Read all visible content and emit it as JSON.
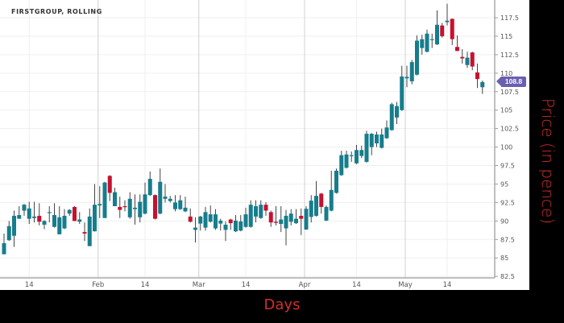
{
  "chart_data": {
    "type": "candlestick",
    "title": "FIRSTGROUP, ROLLING",
    "xlabel": "Days",
    "ylabel": "Price (in pence)",
    "ylim": [
      82.3,
      119.9
    ],
    "yticks": [
      82.5,
      85,
      87.5,
      90,
      92.5,
      95,
      97.5,
      100,
      102.5,
      105,
      107.5,
      110,
      112.5,
      115,
      117.5
    ],
    "xticks": [
      {
        "label": "14",
        "date": "Jan 14",
        "major": false
      },
      {
        "label": "Feb",
        "date": "Feb 1",
        "major": true
      },
      {
        "label": "14",
        "date": "Feb 14",
        "major": false
      },
      {
        "label": "Mar",
        "date": "Mar 1",
        "major": true
      },
      {
        "label": "14",
        "date": "Mar 14",
        "major": false
      },
      {
        "label": "Apr",
        "date": "Apr 1",
        "major": true
      },
      {
        "label": "14",
        "date": "Apr 15",
        "major": false
      },
      {
        "label": "May",
        "date": "May 1",
        "major": true
      },
      {
        "label": "14",
        "date": "May 14",
        "major": false
      }
    ],
    "grid": true,
    "last_price": "108.8",
    "colors": {
      "up": "#167d8c",
      "down": "#c8102e",
      "wick": "#444444",
      "badge": "#6a5fb0",
      "axis_title": "#d32f2f"
    },
    "columns": [
      "date",
      "open",
      "high",
      "low",
      "close"
    ],
    "candles": [
      [
        "Jan 7",
        85.5,
        88.3,
        85.5,
        87.0
      ],
      [
        "Jan 8",
        87.4,
        90.0,
        87.3,
        89.3
      ],
      [
        "Jan 9",
        88.0,
        91.4,
        86.5,
        90.7
      ],
      [
        "Jan 10",
        90.3,
        92.0,
        90.3,
        90.8
      ],
      [
        "Jan 11",
        91.4,
        92.3,
        90.7,
        92.2
      ],
      [
        "Jan 14",
        90.3,
        92.6,
        89.6,
        91.7
      ],
      [
        "Jan 15",
        90.4,
        92.6,
        89.8,
        90.6
      ],
      [
        "Jan 16",
        90.7,
        92.4,
        89.4,
        89.9
      ],
      [
        "Jan 17",
        89.5,
        90.1,
        88.9,
        90.0
      ],
      [
        "Jan 18",
        91.1,
        92.0,
        89.8,
        91.2
      ],
      [
        "Jan 21",
        89.2,
        92.4,
        89.1,
        90.8
      ],
      [
        "Jan 22",
        88.2,
        92.0,
        88.2,
        90.5
      ],
      [
        "Jan 23",
        89.0,
        91.6,
        88.9,
        90.7
      ],
      [
        "Jan 24",
        91.0,
        91.6,
        90.7,
        91.5
      ],
      [
        "Jan 25",
        91.9,
        92.0,
        90.0,
        90.0
      ],
      [
        "Jan 28",
        89.9,
        91.2,
        89.6,
        90.2
      ],
      [
        "Jan 29",
        88.5,
        89.8,
        87.3,
        88.3
      ],
      [
        "Jan 30",
        86.6,
        91.7,
        86.6,
        90.6
      ],
      [
        "Jan 31",
        88.6,
        95.0,
        88.6,
        92.2
      ],
      [
        "Feb 1",
        92.1,
        94.7,
        90.4,
        92.3
      ],
      [
        "Feb 4",
        90.4,
        95.3,
        90.4,
        95.2
      ],
      [
        "Feb 5",
        96.1,
        96.2,
        92.7,
        93.8
      ],
      [
        "Feb 6",
        92.0,
        94.5,
        92.0,
        93.9
      ],
      [
        "Feb 7",
        91.9,
        93.3,
        90.4,
        91.5
      ],
      [
        "Feb 8",
        92.0,
        92.8,
        91.3,
        91.9
      ],
      [
        "Feb 11",
        90.5,
        93.9,
        90.3,
        93.0
      ],
      [
        "Feb 12",
        91.6,
        93.6,
        89.5,
        91.8
      ],
      [
        "Feb 13",
        90.5,
        93.6,
        89.8,
        92.6
      ],
      [
        "Feb 14",
        91.0,
        95.2,
        90.9,
        93.6
      ],
      [
        "Feb 15",
        93.5,
        96.7,
        93.4,
        95.7
      ],
      [
        "Feb 18",
        93.5,
        93.6,
        90.2,
        90.3
      ],
      [
        "Feb 19",
        91.0,
        97.1,
        90.9,
        95.3
      ],
      [
        "Feb 20",
        93.0,
        95.0,
        92.5,
        93.3
      ],
      [
        "Feb 21",
        92.7,
        93.4,
        92.5,
        93.0
      ],
      [
        "Feb 22",
        91.6,
        93.5,
        91.3,
        92.5
      ],
      [
        "Feb 25",
        91.6,
        93.5,
        91.5,
        92.8
      ],
      [
        "Feb 26",
        91.3,
        93.3,
        91.2,
        91.8
      ],
      [
        "Feb 27",
        90.6,
        91.7,
        89.8,
        89.9
      ],
      [
        "Feb 28",
        88.8,
        90.5,
        87.1,
        89.1
      ],
      [
        "Mar 1",
        89.65,
        90.7,
        88.7,
        90.6
      ],
      [
        "Mar 4",
        89.1,
        91.9,
        88.7,
        91.2
      ],
      [
        "Mar 5",
        89.9,
        92.1,
        89.8,
        90.9
      ],
      [
        "Mar 6",
        89.0,
        91.6,
        88.8,
        90.9
      ],
      [
        "Mar 7",
        89.65,
        90.3,
        88.7,
        90.05
      ],
      [
        "Mar 8",
        88.8,
        89.94,
        87.3,
        89.5
      ],
      [
        "Mar 11",
        90.2,
        90.3,
        88.8,
        89.7
      ],
      [
        "Mar 12",
        88.6,
        90.8,
        88.5,
        90.05
      ],
      [
        "Mar 13",
        88.7,
        90.8,
        88.6,
        89.94
      ],
      [
        "Mar 14",
        89.2,
        91.8,
        89.1,
        90.9
      ],
      [
        "Mar 15",
        89.2,
        92.8,
        89.1,
        92.2
      ],
      [
        "Mar 18",
        90.6,
        92.8,
        89.8,
        92.0
      ],
      [
        "Mar 19",
        90.4,
        92.8,
        90.3,
        92.2
      ],
      [
        "Mar 20",
        92.2,
        92.55,
        90.7,
        91.4
      ],
      [
        "Mar 21",
        91.2,
        91.4,
        89.2,
        89.8
      ],
      [
        "Mar 22",
        89.9,
        92.0,
        89.4,
        89.75
      ],
      [
        "Mar 25",
        89.6,
        92.0,
        88.5,
        90.2
      ],
      [
        "Mar 26",
        89.0,
        91.5,
        86.7,
        90.7
      ],
      [
        "Mar 27",
        89.9,
        91.6,
        89.4,
        91.0
      ],
      [
        "Mar 28",
        89.7,
        91.6,
        89.6,
        90.3
      ],
      [
        "Mar 29",
        90.7,
        91.7,
        88.1,
        90.3
      ],
      [
        "Apr 1",
        88.85,
        92.0,
        88.8,
        91.65
      ],
      [
        "Apr 2",
        90.55,
        93.5,
        89.8,
        92.75
      ],
      [
        "Apr 3",
        90.7,
        95.4,
        90.6,
        93.4
      ],
      [
        "Apr 4",
        93.7,
        93.8,
        91.0,
        91.9
      ],
      [
        "Apr 5",
        90.05,
        92.1,
        90.0,
        91.9
      ],
      [
        "Apr 8",
        91.4,
        96.8,
        91.3,
        94.2
      ],
      [
        "Apr 9",
        93.8,
        97.1,
        93.7,
        96.8
      ],
      [
        "Apr 10",
        96.2,
        99.5,
        96.1,
        98.9
      ],
      [
        "Apr 11",
        97.2,
        99.5,
        97.1,
        99.0
      ],
      [
        "Apr 12",
        98.8,
        99.4,
        98.0,
        98.9
      ],
      [
        "Apr 15",
        97.8,
        100.3,
        97.7,
        99.6
      ],
      [
        "Apr 16",
        98.8,
        100.2,
        98.5,
        99.6
      ],
      [
        "Apr 17",
        98.0,
        102.2,
        97.9,
        101.8
      ],
      [
        "Apr 18",
        100.0,
        101.9,
        98.9,
        101.8
      ],
      [
        "Apr 23",
        100.5,
        102.1,
        100.0,
        101.7
      ],
      [
        "Apr 24",
        99.9,
        102.5,
        99.8,
        101.7
      ],
      [
        "Apr 25",
        101.2,
        103.6,
        101.1,
        102.65
      ],
      [
        "Apr 26",
        102.3,
        106.0,
        102.2,
        105.8
      ],
      [
        "Apr 29",
        104.0,
        106.1,
        103.1,
        105.55
      ],
      [
        "Apr 30",
        105.0,
        111.0,
        104.9,
        109.55
      ],
      [
        "May 1",
        109.3,
        111.0,
        108.1,
        109.5
      ],
      [
        "May 2",
        108.9,
        111.8,
        108.5,
        111.5
      ],
      [
        "May 3",
        109.8,
        115.1,
        109.7,
        114.4
      ],
      [
        "May 7",
        113.4,
        115.2,
        112.5,
        114.6
      ],
      [
        "May 8",
        112.9,
        115.9,
        112.8,
        115.35
      ],
      [
        "May 9",
        114.5,
        115.35,
        113.4,
        114.6
      ],
      [
        "May 10",
        113.9,
        118.5,
        113.8,
        116.55
      ],
      [
        "May 13",
        116.45,
        116.8,
        114.8,
        115.0
      ],
      [
        "May 14",
        116.9,
        119.4,
        116.45,
        117.1
      ],
      [
        "May 15",
        117.35,
        117.4,
        113.8,
        114.6
      ],
      [
        "May 16",
        113.55,
        115.1,
        113.0,
        113.0
      ],
      [
        "May 17",
        112.2,
        113.25,
        111.3,
        112.0
      ],
      [
        "May 20",
        111.1,
        112.9,
        110.7,
        112.1
      ],
      [
        "May 21",
        112.8,
        112.9,
        110.4,
        110.9
      ],
      [
        "May 22",
        110.1,
        111.3,
        108.0,
        109.2
      ],
      [
        "May 23",
        108.1,
        109.0,
        107.2,
        108.8
      ]
    ]
  }
}
